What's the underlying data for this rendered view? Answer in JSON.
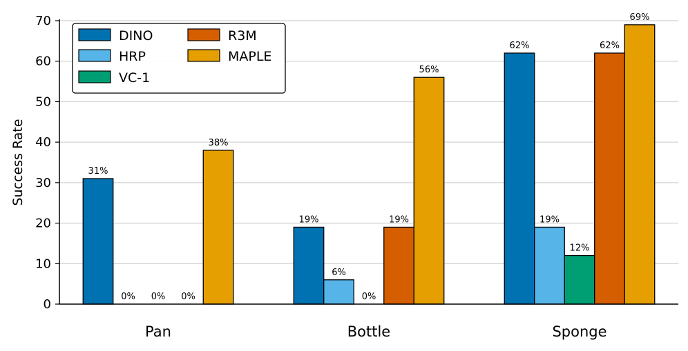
{
  "chart_data": {
    "type": "bar",
    "title": "",
    "xlabel": "",
    "ylabel": "Success Rate",
    "ylim": [
      0,
      70
    ],
    "yticks": [
      0,
      10,
      20,
      30,
      40,
      50,
      60,
      70
    ],
    "grid": "horizontal",
    "legend_position": "top-left",
    "categories": [
      "Pan",
      "Bottle",
      "Sponge"
    ],
    "series": [
      {
        "name": "DINO",
        "color": "#0072B2",
        "values": [
          31,
          19,
          62
        ]
      },
      {
        "name": "HRP",
        "color": "#56B4E9",
        "values": [
          0,
          6,
          19
        ]
      },
      {
        "name": "VC-1",
        "color": "#009E73",
        "values": [
          0,
          0,
          12
        ]
      },
      {
        "name": "R3M",
        "color": "#D55E00",
        "values": [
          0,
          19,
          62
        ]
      },
      {
        "name": "MAPLE",
        "color": "#E69F00",
        "values": [
          38,
          56,
          69
        ]
      }
    ],
    "value_labels": [
      [
        "31%",
        "19%",
        "62%"
      ],
      [
        "0%",
        "6%",
        "19%"
      ],
      [
        "0%",
        "0%",
        "12%"
      ],
      [
        "0%",
        "19%",
        "62%"
      ],
      [
        "38%",
        "56%",
        "69%"
      ]
    ]
  }
}
